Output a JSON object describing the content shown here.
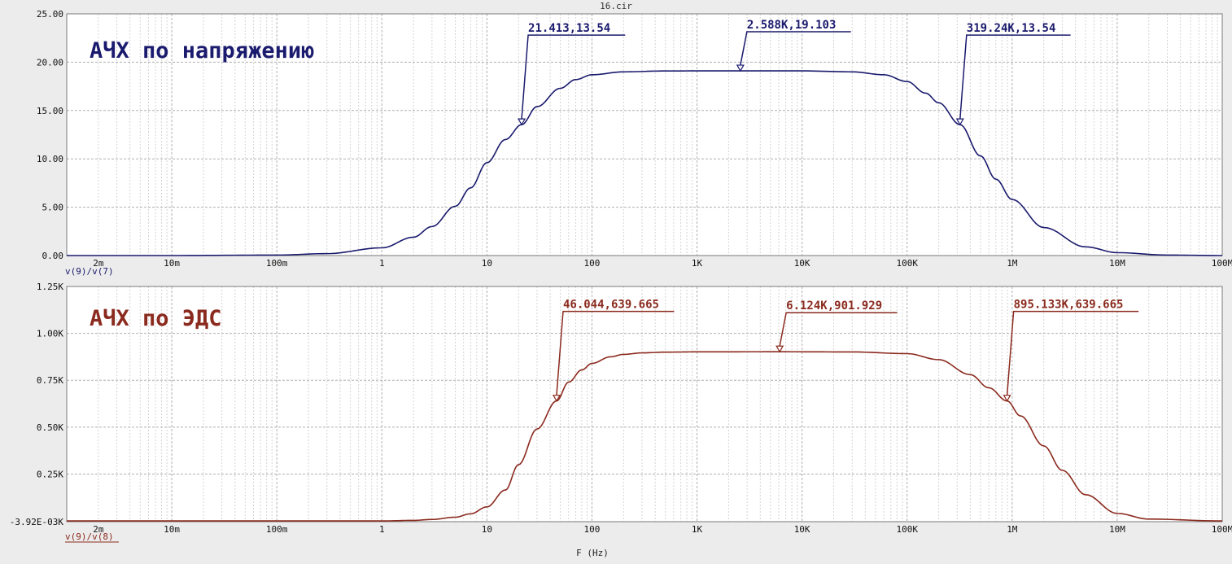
{
  "file_title": "16.cir",
  "x_axis_label": "F (Hz)",
  "chart_data": [
    {
      "type": "line",
      "x_scale": "log",
      "xlim": [
        0.001,
        100000000
      ],
      "x_tick_values": [
        0.002,
        0.01,
        0.1,
        1,
        10,
        100,
        1000,
        10000,
        100000,
        1000000,
        10000000,
        100000000
      ],
      "x_tick_labels": [
        "2m",
        "10m",
        "100m",
        "1",
        "10",
        "100",
        "1K",
        "10K",
        "100K",
        "1M",
        "10M",
        "100M"
      ],
      "ylim": [
        0,
        25
      ],
      "y_tick_values": [
        0,
        5,
        10,
        15,
        20,
        25
      ],
      "y_tick_labels": [
        "0.00",
        "5.00",
        "10.00",
        "15.00",
        "20.00",
        "25.00"
      ],
      "grid": true,
      "color": "#1a1a6e",
      "annotation_title": "АЧХ по напряжению",
      "trace_label": "v(9)/v(7)",
      "series": [
        {
          "x": [
            0.001,
            0.01,
            0.1,
            0.3,
            1,
            2,
            3,
            5,
            7,
            10,
            15,
            21.413,
            30,
            50,
            70,
            100,
            200,
            500,
            1000,
            2588,
            10000,
            30000,
            60000,
            100000,
            150000,
            200000,
            319240,
            500000,
            700000,
            1000000,
            2000000,
            5000000,
            10000000,
            30000000,
            100000000
          ],
          "y": [
            0,
            0,
            0.05,
            0.2,
            0.8,
            1.9,
            3.0,
            5.1,
            7.0,
            9.6,
            12.0,
            13.54,
            15.4,
            17.3,
            18.2,
            18.7,
            19.0,
            19.09,
            19.1,
            19.103,
            19.1,
            19.0,
            18.7,
            18.0,
            16.8,
            15.8,
            13.54,
            10.3,
            7.9,
            5.8,
            2.9,
            0.9,
            0.3,
            0.05,
            0
          ]
        }
      ],
      "markers": [
        {
          "x": 21.413,
          "y": 13.54,
          "label": "21.413,13.54"
        },
        {
          "x": 2588,
          "y": 19.103,
          "label": "2.588K,19.103"
        },
        {
          "x": 319240,
          "y": 13.54,
          "label": "319.24K,13.54"
        }
      ]
    },
    {
      "type": "line",
      "x_scale": "log",
      "xlim": [
        0.001,
        100000000
      ],
      "x_tick_values": [
        0.002,
        0.01,
        0.1,
        1,
        10,
        100,
        1000,
        10000,
        100000,
        1000000,
        10000000,
        100000000
      ],
      "x_tick_labels": [
        "2m",
        "10m",
        "100m",
        "1",
        "10",
        "100",
        "1K",
        "10K",
        "100K",
        "1M",
        "10M",
        "100M"
      ],
      "ylim": [
        -3.92,
        1250
      ],
      "y_tick_values": [
        -3.92,
        250,
        500,
        750,
        1000,
        1250
      ],
      "y_tick_labels": [
        "-3.92E-03K",
        "0.25K",
        "0.50K",
        "0.75K",
        "1.00K",
        "1.25K"
      ],
      "grid": true,
      "color": "#8b2a1e",
      "annotation_title": "АЧХ по ЭДС",
      "trace_label": "v(9)/v(8)",
      "series": [
        {
          "x": [
            0.001,
            0.1,
            1,
            2,
            3,
            5,
            7,
            10,
            15,
            20,
            30,
            46.044,
            60,
            80,
            100,
            150,
            200,
            300,
            500,
            1000,
            6124,
            30000,
            100000,
            200000,
            400000,
            600000,
            895133,
            1200000,
            2000000,
            3000000,
            5000000,
            10000000,
            20000000,
            100000000
          ],
          "y": [
            0,
            0,
            0,
            3,
            8,
            20,
            38,
            75,
            165,
            300,
            490,
            639.665,
            740,
            805,
            840,
            875,
            888,
            896,
            900,
            901.5,
            901.929,
            901,
            892,
            860,
            780,
            710,
            639.665,
            560,
            400,
            270,
            140,
            40,
            10,
            0
          ]
        }
      ],
      "markers": [
        {
          "x": 46.044,
          "y": 639.665,
          "label": "46.044,639.665"
        },
        {
          "x": 6124,
          "y": 901.929,
          "label": "6.124K,901.929"
        },
        {
          "x": 895133,
          "y": 639.665,
          "label": "895.133K,639.665"
        }
      ]
    }
  ]
}
